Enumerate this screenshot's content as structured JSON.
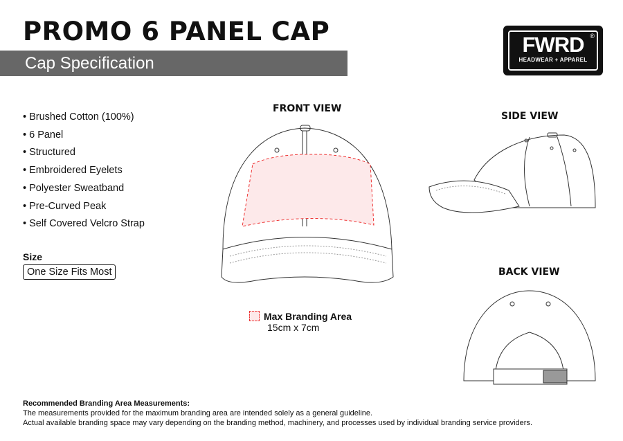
{
  "header": {
    "title": "PROMO 6 PANEL CAP",
    "subtitle": "Cap Specification"
  },
  "logo": {
    "brand": "FWRD",
    "tagline": "HEADWEAR + APPAREL",
    "mark": "®"
  },
  "features": [
    "• Brushed Cotton (100%)",
    "• 6 Panel",
    "• Structured",
    "• Embroidered Eyelets",
    "• Polyester Sweatband",
    "• Pre-Curved Peak",
    "• Self Covered Velcro Strap"
  ],
  "size": {
    "label": "Size",
    "value": "One Size Fits Most"
  },
  "views": {
    "front": "FRONT VIEW",
    "side": "SIDE VIEW",
    "back": "BACK VIEW"
  },
  "branding": {
    "label": "Max Branding Area",
    "dimensions": "15cm x 7cm",
    "area_color": "#fde9ea",
    "outline_color": "#e33333"
  },
  "footer": {
    "heading": "Recommended Branding Area Measurements:",
    "line1": "The measurements provided for the maximum branding area are intended solely as a general guideline.",
    "line2": "Actual available branding space may vary depending on the branding method, machinery, and processes used by individual branding service providers."
  }
}
